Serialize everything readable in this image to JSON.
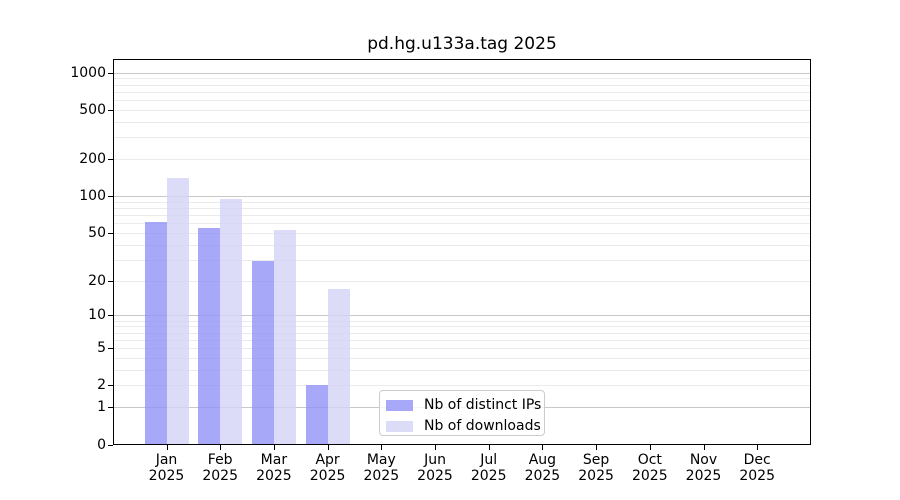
{
  "title": "pd.hg.u133a.tag 2025",
  "chart_data": {
    "type": "bar",
    "title": "pd.hg.u133a.tag 2025",
    "categories": [
      "Jan 2025",
      "Feb 2025",
      "Mar 2025",
      "Apr 2025",
      "May 2025",
      "Jun 2025",
      "Jul 2025",
      "Aug 2025",
      "Sep 2025",
      "Oct 2025",
      "Nov 2025",
      "Dec 2025"
    ],
    "series": [
      {
        "name": "Nb of distinct IPs",
        "color": "#9292f6",
        "values": [
          61,
          55,
          29,
          2,
          0,
          0,
          0,
          0,
          0,
          0,
          0,
          0
        ]
      },
      {
        "name": "Nb of downloads",
        "color": "#d3d3f6",
        "values": [
          140,
          95,
          53,
          17,
          0,
          0,
          0,
          0,
          0,
          0,
          0,
          0
        ]
      }
    ],
    "bar_alpha": 0.8,
    "yscale": "log1p",
    "ylim": [
      0,
      1100
    ],
    "yticks": [
      0,
      1,
      2,
      5,
      10,
      20,
      50,
      100,
      200,
      500,
      1000
    ],
    "major_gridlines": [
      1,
      10,
      100,
      1000
    ],
    "minor_gridlines": [
      2,
      3,
      4,
      5,
      6,
      7,
      8,
      9,
      20,
      30,
      40,
      50,
      60,
      70,
      80,
      90,
      200,
      300,
      400,
      500,
      600,
      700,
      800,
      900
    ],
    "grid": true,
    "legend_position": "lower center",
    "xlabel": "",
    "ylabel": ""
  },
  "legend": {
    "items": [
      {
        "label": "Nb of distinct IPs",
        "color": "#9292f6"
      },
      {
        "label": "Nb of downloads",
        "color": "#d3d3f6"
      }
    ]
  },
  "colors": {
    "major_grid": "#c8c8c8",
    "minor_grid": "#ebebeb",
    "spine": "#000000",
    "background": "#ffffff",
    "text": "#000000",
    "legend_border": "#cccccc"
  }
}
